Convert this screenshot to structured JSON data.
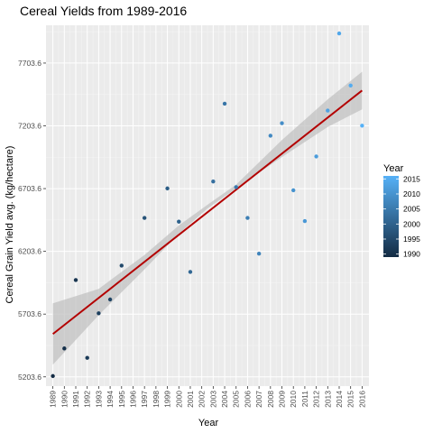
{
  "chart_data": {
    "type": "scatter",
    "title": "Cereal Yields from 1989-2016",
    "xlabel": "Year",
    "ylabel": "Cereal Grain Yield avg. (kg/hectare)",
    "x_ticks": [
      "1989",
      "1990",
      "1991",
      "1992",
      "1993",
      "1994",
      "1995",
      "1996",
      "1997",
      "1998",
      "1999",
      "2000",
      "2001",
      "2002",
      "2003",
      "2004",
      "2005",
      "2006",
      "2007",
      "2008",
      "2009",
      "2010",
      "2011",
      "2012",
      "2013",
      "2014",
      "2015",
      "2016"
    ],
    "y_ticks": [
      "5203.6",
      "5703.6",
      "6203.6",
      "6703.6",
      "7203.6",
      "7703.6"
    ],
    "xlim": [
      1988.4,
      2016.6
    ],
    "ylim": [
      5130,
      8005
    ],
    "points": [
      {
        "x": 1989,
        "y": 5210
      },
      {
        "x": 1990,
        "y": 5430
      },
      {
        "x": 1991,
        "y": 5975
      },
      {
        "x": 1992,
        "y": 5355
      },
      {
        "x": 1993,
        "y": 5710
      },
      {
        "x": 1994,
        "y": 5820
      },
      {
        "x": 1995,
        "y": 6090
      },
      {
        "x": 1997,
        "y": 6470
      },
      {
        "x": 1999,
        "y": 6705
      },
      {
        "x": 2000,
        "y": 6440
      },
      {
        "x": 2001,
        "y": 6040
      },
      {
        "x": 2003,
        "y": 6760
      },
      {
        "x": 2004,
        "y": 7380
      },
      {
        "x": 2005,
        "y": 6715
      },
      {
        "x": 2006,
        "y": 6470
      },
      {
        "x": 2007,
        "y": 6185
      },
      {
        "x": 2008,
        "y": 7125
      },
      {
        "x": 2009,
        "y": 7225
      },
      {
        "x": 2010,
        "y": 6690
      },
      {
        "x": 2011,
        "y": 6445
      },
      {
        "x": 2012,
        "y": 6960
      },
      {
        "x": 2013,
        "y": 7325
      },
      {
        "x": 2014,
        "y": 7940
      },
      {
        "x": 2015,
        "y": 7525
      },
      {
        "x": 2016,
        "y": 7205
      }
    ],
    "trend": {
      "method": "linear",
      "x": [
        1989,
        2016
      ],
      "y": [
        5545,
        7485
      ],
      "color": "#b30000"
    },
    "confidence_band": {
      "x": [
        1989,
        1993,
        1997,
        2000,
        2002.5,
        2005,
        2009,
        2013,
        2016
      ],
      "lower": [
        5300,
        5695,
        6060,
        6345,
        6545,
        6705,
        6955,
        7195,
        7335
      ],
      "upper": [
        5790,
        5905,
        6175,
        6410,
        6575,
        6735,
        7090,
        7415,
        7635
      ],
      "color": "#bfbfbf"
    },
    "legend": {
      "title": "Year",
      "position": "right",
      "labels": [
        "2015",
        "2010",
        "2005",
        "2000",
        "1995",
        "1990"
      ],
      "gradient_low": "#132b43",
      "gradient_high": "#56b1f7"
    },
    "grid": true,
    "panel_background": "#ebebeb"
  }
}
